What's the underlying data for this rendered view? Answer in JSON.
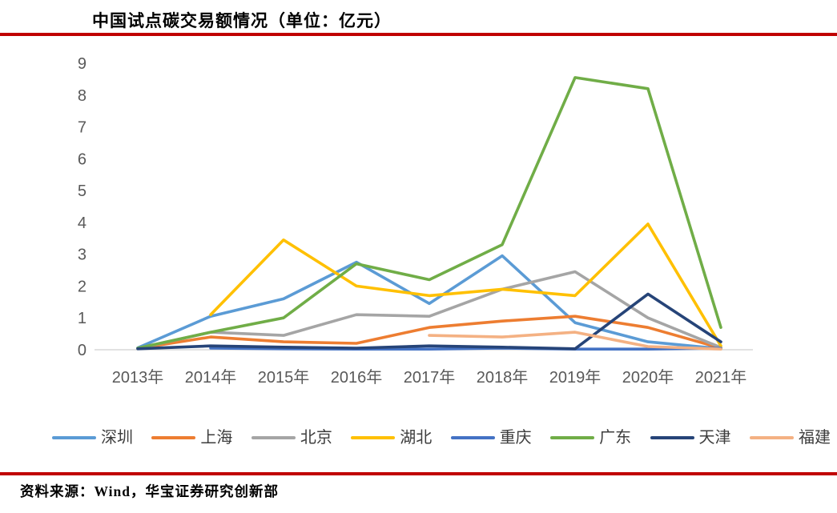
{
  "header": {
    "title": "中国试点碳交易额情况（单位：亿元）"
  },
  "footer": {
    "source": "资料来源：Wind，华宝证券研究创新部"
  },
  "theme": {
    "rule_color": "#C00000",
    "axis_line_color": "#D9D9D9",
    "tick_label_color": "#595959",
    "legend_text_color": "#3d3d3d",
    "background": "#FFFFFF"
  },
  "chart_data": {
    "type": "line",
    "title": "中国试点碳交易额情况（单位：亿元）",
    "unit": "亿元",
    "xlabel": "",
    "ylabel": "",
    "ylim": [
      0,
      9
    ],
    "yticks": [
      0,
      1,
      2,
      3,
      4,
      5,
      6,
      7,
      8,
      9
    ],
    "grid": false,
    "legend_position": "bottom",
    "categories": [
      "2013年",
      "2014年",
      "2015年",
      "2016年",
      "2017年",
      "2018年",
      "2019年",
      "2020年",
      "2021年"
    ],
    "series": [
      {
        "name": "深圳",
        "color": "#5B9BD5",
        "values": [
          0.06,
          1.05,
          1.6,
          2.75,
          1.45,
          2.95,
          0.85,
          0.25,
          0.03
        ]
      },
      {
        "name": "上海",
        "color": "#ED7D31",
        "values": [
          0.04,
          0.4,
          0.25,
          0.2,
          0.7,
          0.9,
          1.05,
          0.7,
          0.05
        ]
      },
      {
        "name": "北京",
        "color": "#A5A5A5",
        "values": [
          0.04,
          0.55,
          0.45,
          1.1,
          1.05,
          1.9,
          2.45,
          1.0,
          0.07
        ]
      },
      {
        "name": "湖北",
        "color": "#FFC000",
        "values": [
          null,
          1.1,
          3.45,
          2.0,
          1.7,
          1.9,
          1.7,
          3.95,
          0.12
        ]
      },
      {
        "name": "重庆",
        "color": "#4472C4",
        "values": [
          null,
          0.05,
          0.03,
          0.02,
          0.02,
          0.05,
          0.02,
          0.02,
          0.05
        ]
      },
      {
        "name": "广东",
        "color": "#70AD47",
        "values": [
          0.05,
          0.55,
          1.0,
          2.7,
          2.2,
          3.3,
          8.55,
          8.2,
          0.7
        ]
      },
      {
        "name": "天津",
        "color": "#264478",
        "values": [
          0.03,
          0.12,
          0.08,
          0.05,
          0.12,
          0.08,
          0.03,
          1.75,
          0.25
        ]
      },
      {
        "name": "福建",
        "color": "#F4B183",
        "values": [
          null,
          null,
          null,
          null,
          0.45,
          0.4,
          0.55,
          0.1,
          0.02
        ]
      }
    ]
  }
}
